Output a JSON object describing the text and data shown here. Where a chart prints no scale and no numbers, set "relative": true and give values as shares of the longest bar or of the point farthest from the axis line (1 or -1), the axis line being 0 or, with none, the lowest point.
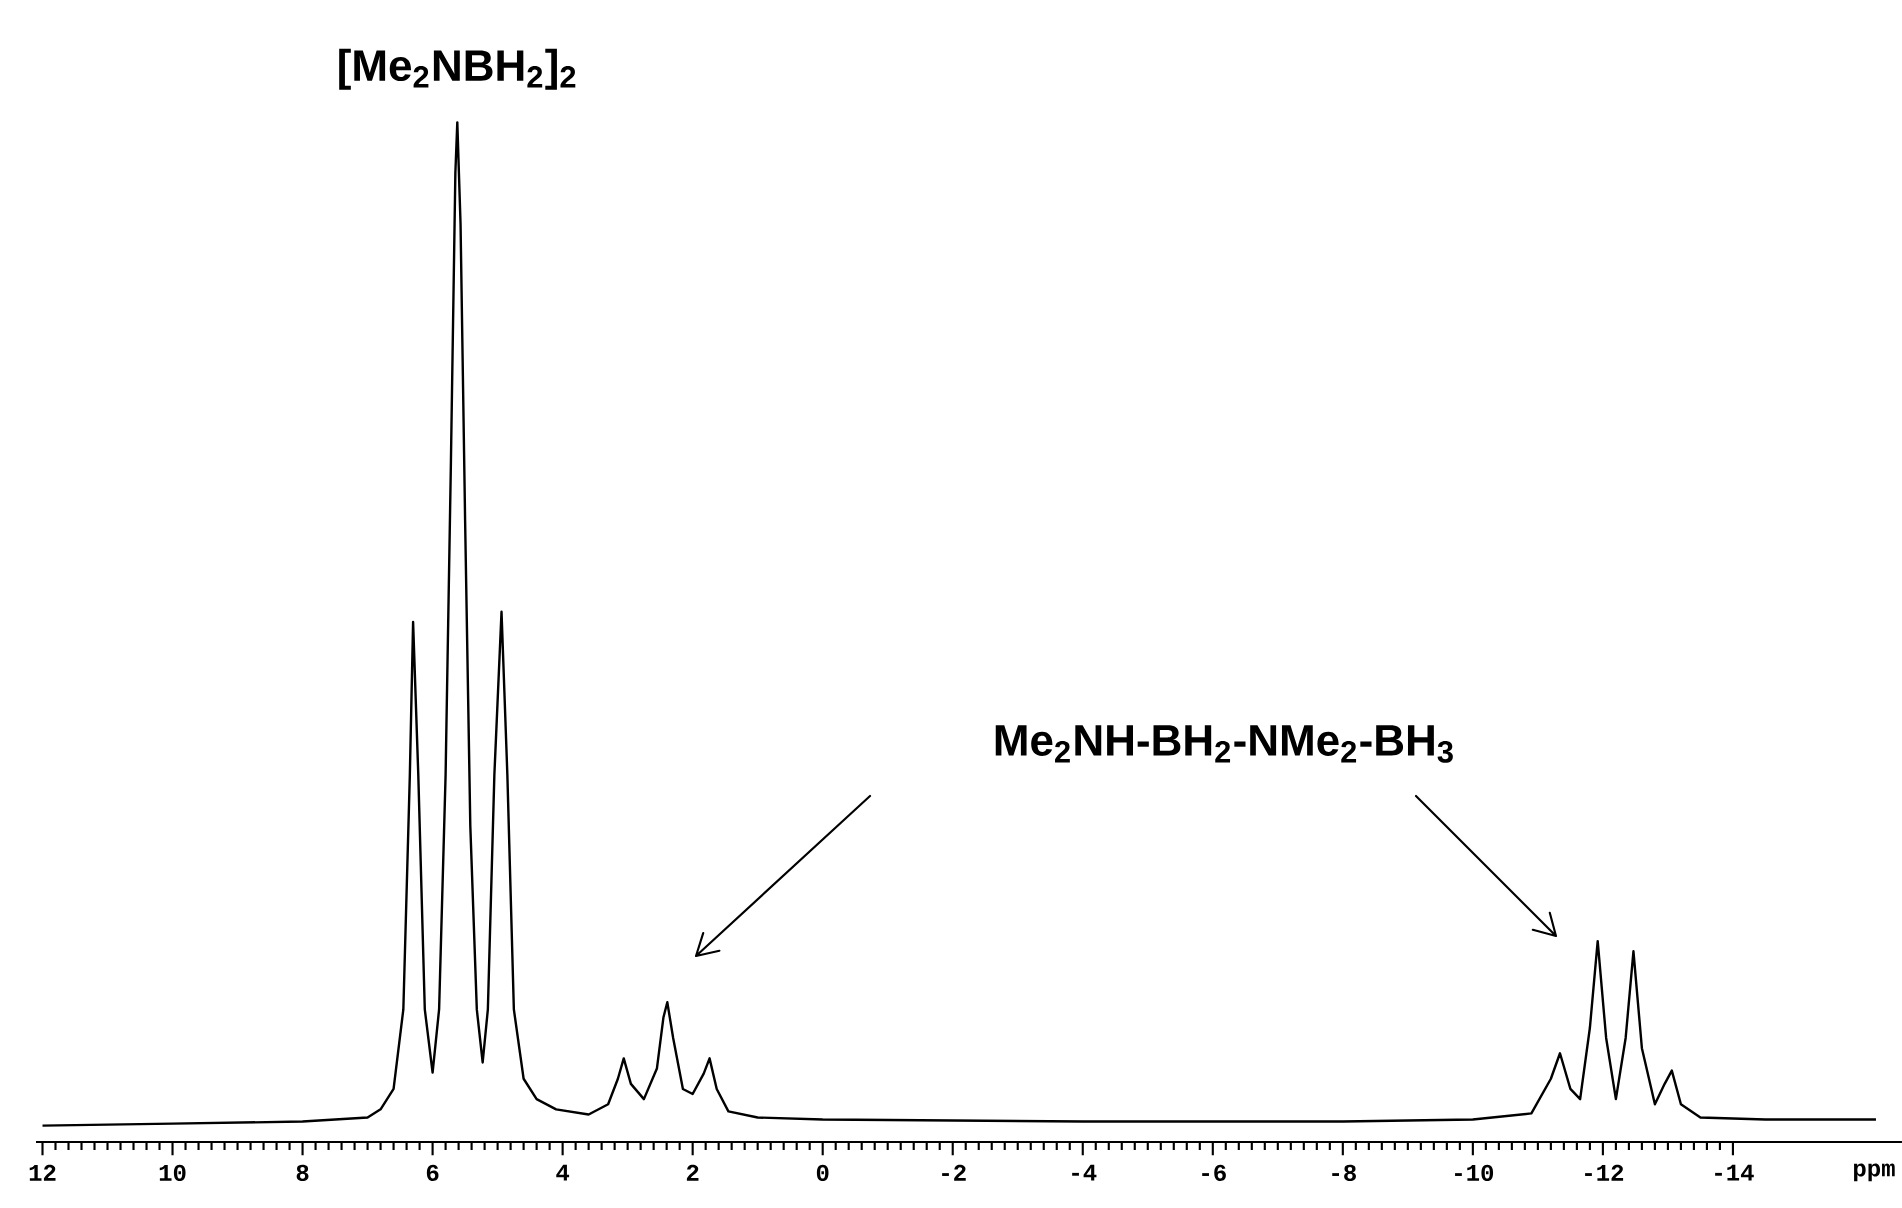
{
  "chart_data": {
    "type": "line",
    "relative": true,
    "xlabel": "ppm",
    "xlim": [
      12.1,
      -16.6
    ],
    "xticks": [
      12,
      10,
      8,
      6,
      4,
      2,
      0,
      -2,
      -4,
      -6,
      -8,
      -10,
      -12,
      -14
    ],
    "annotations": [
      {
        "text": "[Me$_{2}$NBH$_{2}$]$_{2}$",
        "x": 5.62,
        "y": 1.0
      },
      "Me$_{2}$NH-BH$_{2}$-NMe$_{2}$-BH$_{3}$"
    ],
    "series": [
      {
        "color": "#000000",
        "x": [
          12.0,
          10,
          8,
          7,
          6.8,
          6.6,
          6.45,
          6.35,
          6.3,
          6.22,
          6.12,
          6.0,
          5.9,
          5.8,
          5.72,
          5.65,
          5.62,
          5.57,
          5.5,
          5.42,
          5.32,
          5.23,
          5.15,
          5.05,
          4.94,
          4.85,
          4.75,
          4.6,
          4.4,
          4.1,
          3.6,
          3.3,
          3.15,
          3.06,
          2.95,
          2.75,
          2.55,
          2.45,
          2.39,
          2.3,
          2.15,
          2.0,
          1.83,
          1.74,
          1.63,
          1.45,
          1.0,
          0,
          -4,
          -8,
          -10,
          -10.9,
          -11.2,
          -11.34,
          -11.5,
          -11.65,
          -11.8,
          -11.92,
          -12.05,
          -12.2,
          -12.35,
          -12.47,
          -12.6,
          -12.8,
          -12.95,
          -13.06,
          -13.2,
          -13.5,
          -14.5,
          -16.2
        ],
        "values": [
          0.016,
          0.018,
          0.02,
          0.024,
          0.032,
          0.052,
          0.13,
          0.36,
          0.51,
          0.36,
          0.13,
          0.068,
          0.13,
          0.36,
          0.66,
          0.95,
          1.0,
          0.9,
          0.61,
          0.31,
          0.13,
          0.078,
          0.13,
          0.36,
          0.52,
          0.36,
          0.13,
          0.062,
          0.042,
          0.032,
          0.027,
          0.037,
          0.062,
          0.082,
          0.057,
          0.042,
          0.072,
          0.122,
          0.137,
          0.102,
          0.052,
          0.047,
          0.067,
          0.082,
          0.052,
          0.03,
          0.024,
          0.022,
          0.02,
          0.02,
          0.022,
          0.028,
          0.062,
          0.087,
          0.052,
          0.042,
          0.112,
          0.197,
          0.102,
          0.042,
          0.102,
          0.187,
          0.092,
          0.037,
          0.057,
          0.07,
          0.037,
          0.024,
          0.022,
          0.022
        ]
      }
    ]
  }
}
